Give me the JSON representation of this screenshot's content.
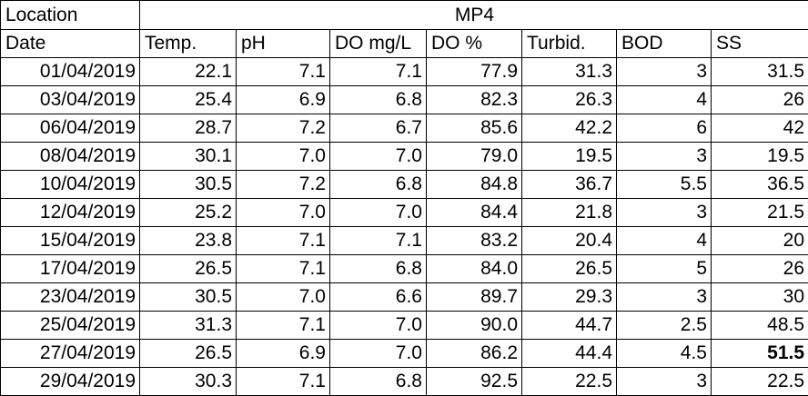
{
  "header": {
    "location_label": "Location",
    "station": "MP4",
    "date_label": "Date",
    "columns": [
      "Temp.",
      "pH",
      "DO mg/L",
      "DO %",
      "Turbid.",
      "BOD",
      "SS"
    ]
  },
  "rows": [
    {
      "date": "01/04/2019",
      "temp": "22.1",
      "ph": "7.1",
      "do_mgl": "7.1",
      "do_pct": "77.9",
      "turbid": "31.3",
      "bod": "3",
      "ss": "31.5"
    },
    {
      "date": "03/04/2019",
      "temp": "25.4",
      "ph": "6.9",
      "do_mgl": "6.8",
      "do_pct": "82.3",
      "turbid": "26.3",
      "bod": "4",
      "ss": "26"
    },
    {
      "date": "06/04/2019",
      "temp": "28.7",
      "ph": "7.2",
      "do_mgl": "6.7",
      "do_pct": "85.6",
      "turbid": "42.2",
      "bod": "6",
      "ss": "42"
    },
    {
      "date": "08/04/2019",
      "temp": "30.1",
      "ph": "7.0",
      "do_mgl": "7.0",
      "do_pct": "79.0",
      "turbid": "19.5",
      "bod": "3",
      "ss": "19.5"
    },
    {
      "date": "10/04/2019",
      "temp": "30.5",
      "ph": "7.2",
      "do_mgl": "6.8",
      "do_pct": "84.8",
      "turbid": "36.7",
      "bod": "5.5",
      "ss": "36.5"
    },
    {
      "date": "12/04/2019",
      "temp": "25.2",
      "ph": "7.0",
      "do_mgl": "7.0",
      "do_pct": "84.4",
      "turbid": "21.8",
      "bod": "3",
      "ss": "21.5"
    },
    {
      "date": "15/04/2019",
      "temp": "23.8",
      "ph": "7.1",
      "do_mgl": "7.1",
      "do_pct": "83.2",
      "turbid": "20.4",
      "bod": "4",
      "ss": "20"
    },
    {
      "date": "17/04/2019",
      "temp": "26.5",
      "ph": "7.1",
      "do_mgl": "6.8",
      "do_pct": "84.0",
      "turbid": "26.5",
      "bod": "5",
      "ss": "26"
    },
    {
      "date": "23/04/2019",
      "temp": "30.5",
      "ph": "7.0",
      "do_mgl": "6.6",
      "do_pct": "89.7",
      "turbid": "29.3",
      "bod": "3",
      "ss": "30"
    },
    {
      "date": "25/04/2019",
      "temp": "31.3",
      "ph": "7.1",
      "do_mgl": "7.0",
      "do_pct": "90.0",
      "turbid": "44.7",
      "bod": "2.5",
      "ss": "48.5"
    },
    {
      "date": "27/04/2019",
      "temp": "26.5",
      "ph": "6.9",
      "do_mgl": "7.0",
      "do_pct": "86.2",
      "turbid": "44.4",
      "bod": "4.5",
      "ss": "51.5"
    },
    {
      "date": "29/04/2019",
      "temp": "30.3",
      "ph": "7.1",
      "do_mgl": "6.8",
      "do_pct": "92.5",
      "turbid": "22.5",
      "bod": "3",
      "ss": "22.5"
    }
  ],
  "bold_cells": [
    "10.ss"
  ]
}
